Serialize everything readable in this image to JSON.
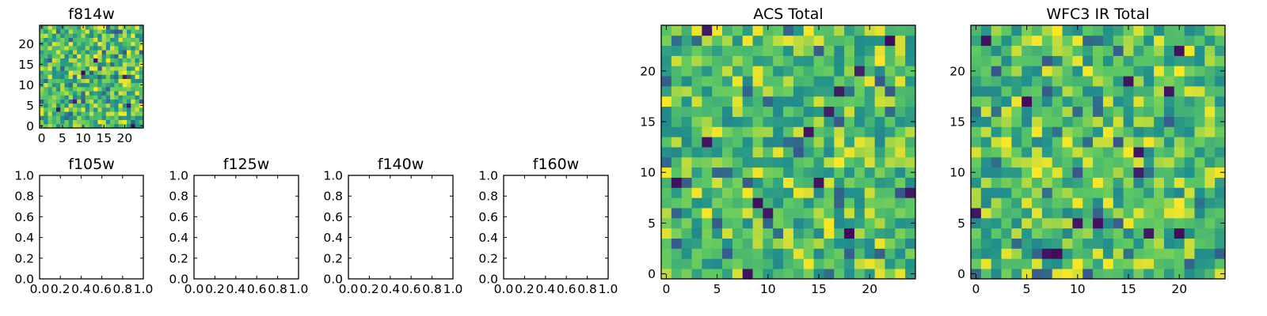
{
  "figure": {
    "background": "#ffffff",
    "colormap": [
      "#440154",
      "#3b528b",
      "#21918c",
      "#5ec962",
      "#fde725"
    ]
  },
  "chart_data": [
    {
      "type": "heatmap",
      "title": "f814w",
      "grid_size": [
        25,
        25
      ],
      "origin": "lower",
      "xlim": [
        -0.5,
        24.5
      ],
      "ylim": [
        -0.5,
        24.5
      ],
      "xticks": [
        0,
        5,
        10,
        15,
        20
      ],
      "yticks": [
        0,
        5,
        10,
        15,
        20
      ],
      "value_range": [
        0,
        1
      ],
      "note": "per-pixel values are noise-like and not individually labeled; approximate distribution concentrated in green-yellow with sparse dark-purple pixels"
    },
    {
      "type": "line",
      "title": "f105w",
      "xlim": [
        0,
        1
      ],
      "ylim": [
        0,
        1
      ],
      "xticks": [
        "0.0",
        "0.2",
        "0.4",
        "0.6",
        "0.8",
        "1.0"
      ],
      "yticks": [
        "0.0",
        "0.2",
        "0.4",
        "0.6",
        "0.8",
        "1.0"
      ],
      "series": []
    },
    {
      "type": "line",
      "title": "f125w",
      "xlim": [
        0,
        1
      ],
      "ylim": [
        0,
        1
      ],
      "xticks": [
        "0.0",
        "0.2",
        "0.4",
        "0.6",
        "0.8",
        "1.0"
      ],
      "yticks": [
        "0.0",
        "0.2",
        "0.4",
        "0.6",
        "0.8",
        "1.0"
      ],
      "series": []
    },
    {
      "type": "line",
      "title": "f140w",
      "xlim": [
        0,
        1
      ],
      "ylim": [
        0,
        1
      ],
      "xticks": [
        "0.0",
        "0.2",
        "0.4",
        "0.6",
        "0.8",
        "1.0"
      ],
      "yticks": [
        "0.0",
        "0.2",
        "0.4",
        "0.6",
        "0.8",
        "1.0"
      ],
      "series": []
    },
    {
      "type": "line",
      "title": "f160w",
      "xlim": [
        0,
        1
      ],
      "ylim": [
        0,
        1
      ],
      "xticks": [
        "0.0",
        "0.2",
        "0.4",
        "0.6",
        "0.8",
        "1.0"
      ],
      "yticks": [
        "0.0",
        "0.2",
        "0.4",
        "0.6",
        "0.8",
        "1.0"
      ],
      "series": []
    },
    {
      "type": "heatmap",
      "title": "ACS Total",
      "grid_size": [
        25,
        25
      ],
      "origin": "lower",
      "xlim": [
        -0.5,
        24.5
      ],
      "ylim": [
        -0.5,
        24.5
      ],
      "xticks": [
        0,
        5,
        10,
        15,
        20
      ],
      "yticks": [
        0,
        5,
        10,
        15,
        20
      ],
      "value_range": [
        0,
        1
      ],
      "note": "per-pixel values are noise-like and not individually labeled; approximate distribution concentrated in green-yellow with sparse dark-purple pixels"
    },
    {
      "type": "heatmap",
      "title": "WFC3 IR Total",
      "grid_size": [
        25,
        25
      ],
      "origin": "lower",
      "xlim": [
        -0.5,
        24.5
      ],
      "ylim": [
        -0.5,
        24.5
      ],
      "xticks": [
        0,
        5,
        10,
        15,
        20
      ],
      "yticks": [
        0,
        5,
        10,
        15,
        20
      ],
      "value_range": [
        0,
        1
      ],
      "note": "per-pixel values are noise-like and not individually labeled; approximate distribution concentrated in green-yellow with sparse dark-purple pixels"
    }
  ]
}
